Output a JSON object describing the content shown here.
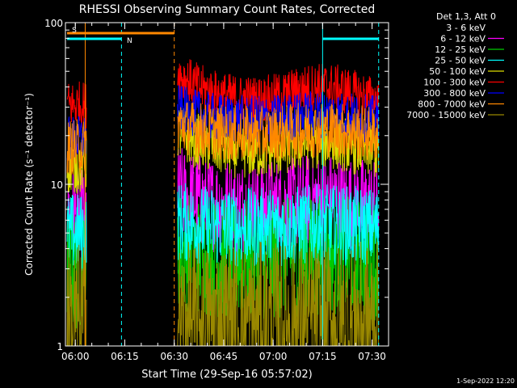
{
  "chart_data": {
    "type": "line",
    "title": "RHESSI Observing Summary Count Rates, Corrected",
    "xlabel": "Start Time (29-Sep-16 05:57:02)",
    "ylabel": "Corrected Count Rate (s⁻¹ detector⁻¹)",
    "yscale": "log",
    "ylim": [
      1,
      100
    ],
    "xlim_minutes": [
      -3,
      95
    ],
    "x_ticks": [
      {
        "minutes": 0,
        "label": "06:00"
      },
      {
        "minutes": 15,
        "label": "06:15"
      },
      {
        "minutes": 30,
        "label": "06:30"
      },
      {
        "minutes": 45,
        "label": "06:45"
      },
      {
        "minutes": 60,
        "label": "07:00"
      },
      {
        "minutes": 75,
        "label": "07:15"
      },
      {
        "minutes": 90,
        "label": "07:30"
      }
    ],
    "y_ticks": [
      {
        "value": 1,
        "label": "1"
      },
      {
        "value": 10,
        "label": "10"
      },
      {
        "value": 100,
        "label": "100"
      }
    ],
    "legend_title": "Det 1,3, Att 0",
    "legend_placement": "right",
    "series": [
      {
        "name": "3 - 6 keV",
        "color": "#000000",
        "early": 33,
        "base": 34,
        "amp": 14,
        "noise": 0.07
      },
      {
        "name": "6 - 12 keV",
        "color": "#ff00ff",
        "early": 6.5,
        "base": 7.5,
        "amp": 1.5,
        "noise": 0.12
      },
      {
        "name": "12 - 25 keV",
        "color": "#00cc00",
        "early": 2.9,
        "base": 3.5,
        "amp": 0.6,
        "noise": 0.15
      },
      {
        "name": "25 - 50 keV",
        "color": "#00ffff",
        "early": 5.0,
        "base": 5.5,
        "amp": 0.5,
        "noise": 0.1
      },
      {
        "name": "50 - 100 keV",
        "color": "#dddd00",
        "early": 13,
        "base": 17,
        "amp": 5,
        "noise": 0.07
      },
      {
        "name": "100 - 300 keV",
        "color": "#ff0000",
        "early": 31,
        "base": 36,
        "amp": 14,
        "noise": 0.06
      },
      {
        "name": "300 - 800 keV",
        "color": "#0000ff",
        "early": 19,
        "base": 26,
        "amp": 4,
        "noise": 0.06
      },
      {
        "name": "800 - 7000 keV",
        "color": "#ff8800",
        "early": 17,
        "base": 21,
        "amp": 3,
        "noise": 0.07
      },
      {
        "name": "7000 - 15000 keV",
        "color": "#998800",
        "early": 1.4,
        "base": 1.4,
        "amp": 0,
        "noise": 0.2
      }
    ],
    "data_gaps_minutes": [
      [
        3.5,
        31
      ]
    ],
    "flags": [
      {
        "label": "S",
        "color": "#ff8800",
        "start_minutes": -2.5,
        "end_minutes": 30
      },
      {
        "label": "N",
        "color": "#00ffff",
        "start_minutes": -2.5,
        "end_minutes": 14
      },
      {
        "label": "",
        "color": "#00ffff",
        "start_minutes": 75,
        "end_minutes": 92
      }
    ],
    "vertical_markers": [
      {
        "minutes": 3.0,
        "color": "#ff8800",
        "style": "solid"
      },
      {
        "minutes": 14.0,
        "color": "#00ffff",
        "style": "dashed"
      },
      {
        "minutes": 30.0,
        "color": "#ff8800",
        "style": "dashed"
      },
      {
        "minutes": 75.0,
        "color": "#00ffff",
        "style": "solid"
      },
      {
        "minutes": 92.0,
        "color": "#00ffff",
        "style": "dashed"
      }
    ]
  },
  "footer": {
    "timestamp": "1-Sep-2022 12:20"
  }
}
